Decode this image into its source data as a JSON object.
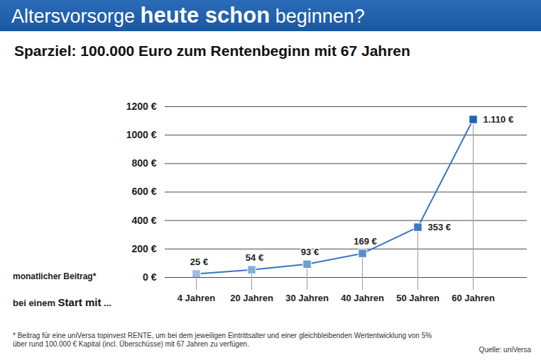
{
  "chart_data": {
    "type": "line",
    "title": "Altersvorsorge heute schon beginnen?",
    "title_emphasis": "heute schon",
    "subtitle": "Sparziel: 100.000 Euro zum Rentenbeginn mit 67 Jahren",
    "ylabel": "monatlicher Beitrag*",
    "xlabel": "bei einem Start mit ...",
    "xlabel_emphasis": "Start mit",
    "categories": [
      "4 Jahren",
      "20 Jahren",
      "30 Jahren",
      "40 Jahren",
      "50 Jahren",
      "60 Jahren"
    ],
    "values": [
      25,
      54,
      93,
      169,
      353,
      1110
    ],
    "value_labels": [
      "25 €",
      "54 €",
      "93 €",
      "169 €",
      "353 €",
      "1.110 €"
    ],
    "data_labels": true,
    "color": "#3a74c4",
    "colors": [
      "#9dbde6",
      "#86aee0",
      "#6f9dd6",
      "#5a8ecf",
      "#3f79c3",
      "#2563b6"
    ],
    "marker": "square",
    "ylim": [
      0,
      1200
    ],
    "yticks": [
      {
        "value": 0,
        "label": "0 €"
      },
      {
        "value": 200,
        "label": "200 €"
      },
      {
        "value": 400,
        "label": "400 €"
      },
      {
        "value": 600,
        "label": "600 €"
      },
      {
        "value": 800,
        "label": "800 €"
      },
      {
        "value": 1000,
        "label": "1000 €"
      },
      {
        "value": 1200,
        "label": "1200 €"
      }
    ],
    "grid": true,
    "footnote": "* Beitrag für eine uniVersa topinvest RENTE, um bei dem jeweiligen Eintrittsalter und einer gleichbleibenden Wertentwicklung von 5% über rund 100.000 € Kapital (incl. Überschüsse) mit 67 Jahren zu verfügen.",
    "source": "Quelle: uniVersa"
  }
}
